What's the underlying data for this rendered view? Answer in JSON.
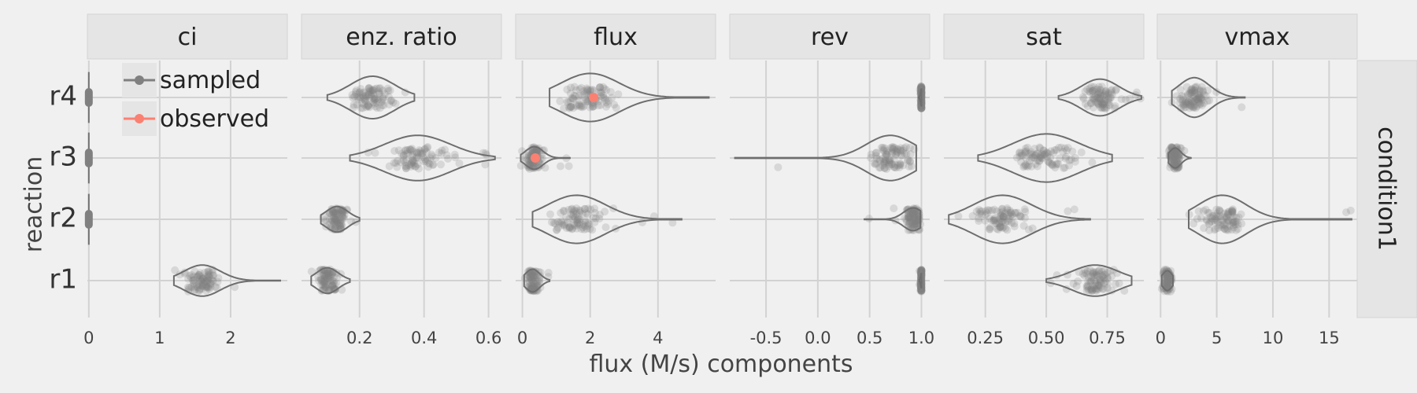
{
  "chart_data": {
    "type": "violin",
    "xlabel": "flux (M/s) components",
    "ylabel": "reaction",
    "row_strip": "condition1",
    "categories": [
      "r1",
      "r2",
      "r3",
      "r4"
    ],
    "legend": {
      "position": "top-left",
      "entries": [
        {
          "label": "sampled",
          "color": "#808080"
        },
        {
          "label": "observed",
          "color": "#fa8072"
        }
      ]
    },
    "grid": true,
    "facets": [
      {
        "name": "ci",
        "xlim": [
          -0.02,
          2.8
        ],
        "ticks": [
          0,
          1,
          2
        ],
        "tick_labels": [
          "0",
          "1",
          "2"
        ],
        "violins": {
          "r1": {
            "min": 1.2,
            "q1": 1.45,
            "median": 1.6,
            "q3": 1.75,
            "max": 2.7,
            "width": 0.55
          },
          "r2": {
            "min": 0,
            "q1": 0,
            "median": 0,
            "q3": 0,
            "max": 0,
            "width": 0.1
          },
          "r3": {
            "min": 0,
            "q1": 0,
            "median": 0,
            "q3": 0,
            "max": 0,
            "width": 0.1
          },
          "r4": {
            "min": 0,
            "q1": 0,
            "median": 0,
            "q3": 0,
            "max": 0,
            "width": 0.1
          }
        },
        "observed": {}
      },
      {
        "name": "enz. ratio",
        "xlim": [
          0.02,
          0.64
        ],
        "ticks": [
          0.2,
          0.4,
          0.6
        ],
        "tick_labels": [
          "0.2",
          "0.4",
          "0.6"
        ],
        "violins": {
          "r1": {
            "min": 0.05,
            "q1": 0.08,
            "median": 0.1,
            "q3": 0.12,
            "max": 0.17,
            "width": 0.45
          },
          "r2": {
            "min": 0.08,
            "q1": 0.11,
            "median": 0.13,
            "q3": 0.15,
            "max": 0.2,
            "width": 0.45
          },
          "r3": {
            "min": 0.17,
            "q1": 0.32,
            "median": 0.38,
            "q3": 0.44,
            "max": 0.62,
            "width": 0.8
          },
          "r4": {
            "min": 0.1,
            "q1": 0.2,
            "median": 0.24,
            "q3": 0.28,
            "max": 0.37,
            "width": 0.75
          }
        },
        "observed": {}
      },
      {
        "name": "flux",
        "xlim": [
          -0.2,
          5.7
        ],
        "ticks": [
          0,
          2,
          4
        ],
        "tick_labels": [
          "0",
          "2",
          "4"
        ],
        "violins": {
          "r1": {
            "min": 0.05,
            "q1": 0.2,
            "median": 0.3,
            "q3": 0.45,
            "max": 0.8,
            "width": 0.4
          },
          "r2": {
            "min": 0.3,
            "q1": 1.2,
            "median": 1.6,
            "q3": 2.2,
            "max": 4.7,
            "width": 0.85
          },
          "r3": {
            "min": -0.05,
            "q1": 0.2,
            "median": 0.35,
            "q3": 0.5,
            "max": 1.4,
            "width": 0.4
          },
          "r4": {
            "min": 0.8,
            "q1": 1.6,
            "median": 2.0,
            "q3": 2.6,
            "max": 5.5,
            "width": 0.85
          }
        },
        "observed": {
          "r3": 0.38,
          "r4": 2.1
        }
      },
      {
        "name": "rev",
        "xlim": [
          -0.85,
          1.08
        ],
        "ticks": [
          -0.5,
          0.0,
          0.5,
          1.0
        ],
        "tick_labels": [
          "-0.5",
          "0.0",
          "0.5",
          "1.0"
        ],
        "violins": {
          "r1": {
            "min": 0.98,
            "q1": 0.99,
            "median": 1.0,
            "q3": 1.0,
            "max": 1.0,
            "width": 0.25
          },
          "r2": {
            "min": 0.45,
            "q1": 0.85,
            "median": 0.92,
            "q3": 0.96,
            "max": 0.99,
            "width": 0.4
          },
          "r3": {
            "min": -0.8,
            "q1": 0.55,
            "median": 0.7,
            "q3": 0.82,
            "max": 0.95,
            "width": 0.8
          },
          "r4": {
            "min": 0.97,
            "q1": 0.99,
            "median": 1.0,
            "q3": 1.0,
            "max": 1.0,
            "width": 0.3
          }
        },
        "observed": {}
      },
      {
        "name": "sat",
        "xlim": [
          0.08,
          0.9
        ],
        "ticks": [
          0.25,
          0.5,
          0.75
        ],
        "tick_labels": [
          "0.25",
          "0.50",
          "0.75"
        ],
        "violins": {
          "r1": {
            "min": 0.5,
            "q1": 0.64,
            "median": 0.7,
            "q3": 0.75,
            "max": 0.85,
            "width": 0.55
          },
          "r2": {
            "min": 0.1,
            "q1": 0.25,
            "median": 0.32,
            "q3": 0.39,
            "max": 0.68,
            "width": 0.85
          },
          "r3": {
            "min": 0.22,
            "q1": 0.42,
            "median": 0.5,
            "q3": 0.58,
            "max": 0.77,
            "width": 0.85
          },
          "r4": {
            "min": 0.55,
            "q1": 0.68,
            "median": 0.72,
            "q3": 0.77,
            "max": 0.89,
            "width": 0.65
          }
        },
        "observed": {}
      },
      {
        "name": "vmax",
        "xlim": [
          -0.3,
          17.5
        ],
        "ticks": [
          0,
          5,
          10,
          15
        ],
        "tick_labels": [
          "0",
          "5",
          "10",
          "15"
        ],
        "violins": {
          "r1": {
            "min": 0.1,
            "q1": 0.35,
            "median": 0.6,
            "q3": 0.85,
            "max": 1.1,
            "width": 0.35
          },
          "r2": {
            "min": 2.5,
            "q1": 4.5,
            "median": 5.5,
            "q3": 7.0,
            "max": 17.0,
            "width": 0.85
          },
          "r3": {
            "min": 0.7,
            "q1": 1.0,
            "median": 1.3,
            "q3": 1.6,
            "max": 2.7,
            "width": 0.35
          },
          "r4": {
            "min": 1.0,
            "q1": 2.2,
            "median": 3.0,
            "q3": 3.8,
            "max": 7.5,
            "width": 0.7
          }
        },
        "observed": {}
      }
    ]
  }
}
